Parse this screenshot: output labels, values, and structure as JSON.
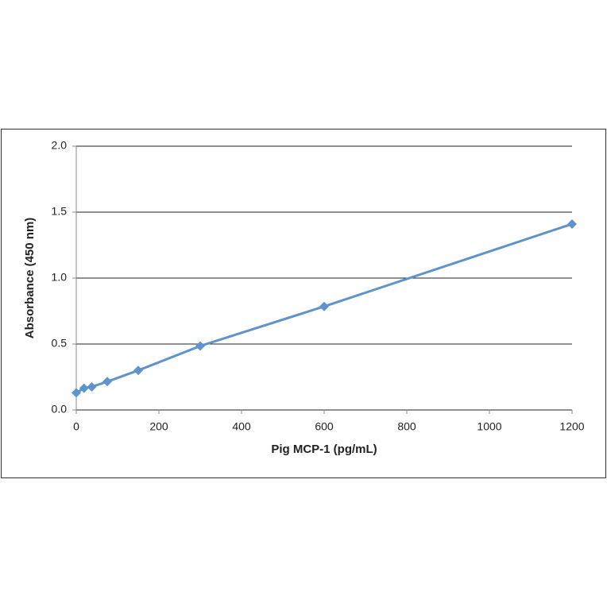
{
  "chart_data": {
    "type": "line",
    "x_label": "Pig MCP-1 (pg/mL)",
    "y_label": "Absorbance (450 nm)",
    "x": [
      0,
      18.75,
      37.5,
      75,
      150,
      300,
      600,
      1200
    ],
    "values": [
      0.13,
      0.165,
      0.175,
      0.215,
      0.3,
      0.485,
      0.785,
      1.41
    ],
    "color": "#5f93cc",
    "marker": "diamond",
    "xlim": [
      0,
      1200
    ],
    "xticks": [
      0,
      200,
      400,
      600,
      800,
      1000,
      1200
    ],
    "ylim": [
      0,
      2
    ],
    "yticks": [
      {
        "value": 0,
        "label": "0.0"
      },
      {
        "value": 0.5,
        "label": "0.5"
      },
      {
        "value": 1,
        "label": "1.0"
      },
      {
        "value": 1.5,
        "label": "1.5"
      },
      {
        "value": 2,
        "label": "2.0"
      }
    ],
    "grid": true
  }
}
